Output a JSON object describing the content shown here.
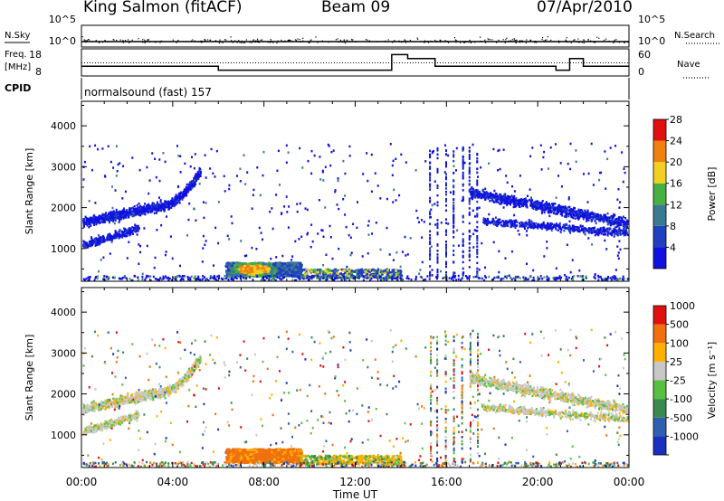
{
  "header": {
    "station": "King Salmon (fitACF)",
    "beam": "Beam 09",
    "date": "07/Apr/2010"
  },
  "chart_data": [
    {
      "type": "line",
      "name": "noise",
      "labels_left": [
        "N.Sky",
        "10^5",
        "10^0"
      ],
      "labels_right": [
        "10^5",
        "10^0",
        "N.Search"
      ],
      "series": [
        {
          "name": "N.Sky",
          "values": [
            1,
            1
          ]
        },
        {
          "name": "N.Search",
          "values": [
            1,
            1
          ]
        }
      ]
    },
    {
      "type": "line",
      "name": "frequency",
      "labels_left": [
        "Freq.",
        "[MHz]",
        "18",
        "8"
      ],
      "labels_right": [
        "60",
        "0",
        "Nave"
      ],
      "freq_steps": [
        {
          "t": 0,
          "f": 11
        },
        {
          "t": 6,
          "f": 9
        },
        {
          "t": 13.6,
          "f": 17
        },
        {
          "t": 14.3,
          "f": 15
        },
        {
          "t": 15.5,
          "f": 11
        },
        {
          "t": 20.8,
          "f": 9
        },
        {
          "t": 21.4,
          "f": 15
        },
        {
          "t": 22.0,
          "f": 11
        }
      ]
    },
    {
      "type": "table",
      "name": "cpid",
      "label": "CPID",
      "text": "normalsound (fast) 157"
    },
    {
      "type": "heatmap",
      "name": "power",
      "ylabel": "Slant Range [km]",
      "yticks": [
        "1000",
        "2000",
        "3000",
        "4000"
      ],
      "ylim": [
        200,
        4600
      ],
      "xlim": [
        0,
        24
      ],
      "colorbar": {
        "label": "Power [dB]",
        "ticks": [
          "4",
          "8",
          "12",
          "16",
          "20",
          "24",
          "28"
        ],
        "colors": [
          "#1010e0",
          "#2040c0",
          "#3a7a90",
          "#46b040",
          "#f0d020",
          "#f08010",
          "#e01010"
        ]
      }
    },
    {
      "type": "heatmap",
      "name": "velocity",
      "ylabel": "Slant Range [km]",
      "yticks": [
        "1000",
        "2000",
        "3000",
        "4000"
      ],
      "ylim": [
        200,
        4600
      ],
      "xlim": [
        0,
        24
      ],
      "xlabel": "Time UT",
      "xticks": [
        "00:00",
        "04:00",
        "08:00",
        "12:00",
        "16:00",
        "20:00",
        "00:00"
      ],
      "colorbar": {
        "label": "Velocity [m s⁻¹]",
        "ticks": [
          "1000",
          "500",
          "100",
          "25",
          "-25",
          "-100",
          "-500",
          "-1000"
        ],
        "colors": [
          "#1a30c0",
          "#2f60b0",
          "#3a8a50",
          "#58c040",
          "#c8c8c8",
          "#ffb000",
          "#f07010",
          "#e01010"
        ]
      }
    }
  ]
}
